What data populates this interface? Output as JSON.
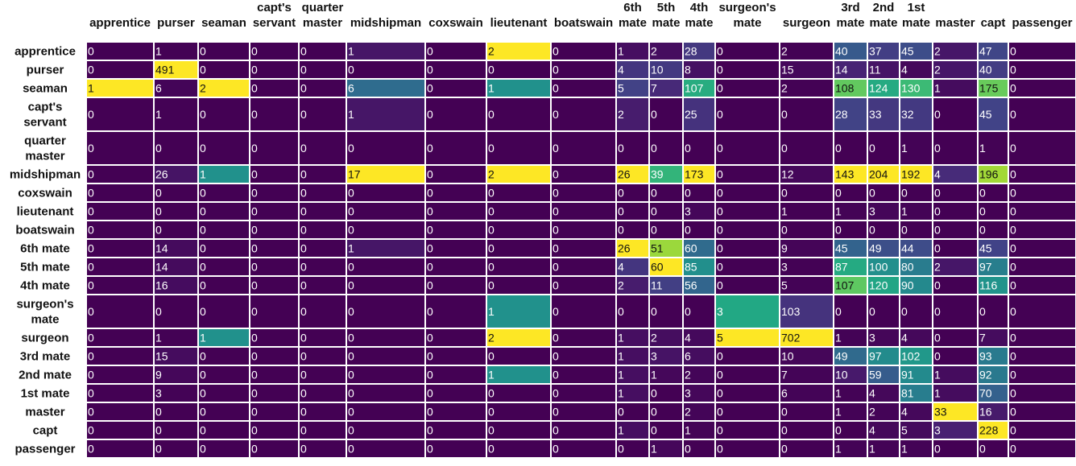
{
  "chart_data": {
    "type": "heatmap",
    "colormap": "viridis",
    "col_labels": [
      [
        "apprentice"
      ],
      [
        "purser"
      ],
      [
        "seaman"
      ],
      [
        "capt's",
        "servant"
      ],
      [
        "quarter",
        "master"
      ],
      [
        "midshipman"
      ],
      [
        "coxswain"
      ],
      [
        "lieutenant"
      ],
      [
        "boatswain"
      ],
      [
        "6th",
        "mate"
      ],
      [
        "5th",
        "mate"
      ],
      [
        "4th",
        "mate"
      ],
      [
        "surgeon's",
        "mate"
      ],
      [
        "surgeon"
      ],
      [
        "3rd",
        "mate"
      ],
      [
        "2nd",
        "mate"
      ],
      [
        "1st",
        "mate"
      ],
      [
        "master"
      ],
      [
        "capt"
      ],
      [
        "passenger"
      ]
    ],
    "row_labels": [
      [
        "apprentice"
      ],
      [
        "purser"
      ],
      [
        "seaman"
      ],
      [
        "capt's",
        "servant"
      ],
      [
        "quarter",
        "master"
      ],
      [
        "midshipman"
      ],
      [
        "coxswain"
      ],
      [
        "lieutenant"
      ],
      [
        "boatswain"
      ],
      [
        "6th mate"
      ],
      [
        "5th mate"
      ],
      [
        "4th mate"
      ],
      [
        "surgeon's",
        "mate"
      ],
      [
        "surgeon"
      ],
      [
        "3rd mate"
      ],
      [
        "2nd mate"
      ],
      [
        "1st mate"
      ],
      [
        "master"
      ],
      [
        "capt"
      ],
      [
        "passenger"
      ]
    ],
    "values": [
      [
        0,
        1,
        0,
        0,
        0,
        1,
        0,
        2,
        0,
        1,
        2,
        28,
        0,
        2,
        40,
        37,
        45,
        2,
        47,
        0
      ],
      [
        0,
        491,
        0,
        0,
        0,
        0,
        0,
        0,
        0,
        4,
        10,
        8,
        0,
        15,
        14,
        11,
        4,
        2,
        40,
        0
      ],
      [
        1,
        6,
        2,
        0,
        0,
        6,
        0,
        1,
        0,
        5,
        7,
        107,
        0,
        2,
        108,
        124,
        130,
        1,
        175,
        0
      ],
      [
        0,
        1,
        0,
        0,
        0,
        1,
        0,
        0,
        0,
        2,
        0,
        25,
        0,
        0,
        28,
        33,
        32,
        0,
        45,
        0
      ],
      [
        0,
        0,
        0,
        0,
        0,
        0,
        0,
        0,
        0,
        0,
        0,
        0,
        0,
        0,
        0,
        0,
        1,
        0,
        1,
        0
      ],
      [
        0,
        26,
        1,
        0,
        0,
        17,
        0,
        2,
        0,
        26,
        39,
        173,
        0,
        12,
        143,
        204,
        192,
        4,
        196,
        0
      ],
      [
        0,
        0,
        0,
        0,
        0,
        0,
        0,
        0,
        0,
        0,
        0,
        0,
        0,
        0,
        0,
        0,
        0,
        0,
        0,
        0
      ],
      [
        0,
        0,
        0,
        0,
        0,
        0,
        0,
        0,
        0,
        0,
        0,
        3,
        0,
        1,
        1,
        3,
        1,
        0,
        0,
        0
      ],
      [
        0,
        0,
        0,
        0,
        0,
        0,
        0,
        0,
        0,
        0,
        0,
        0,
        0,
        0,
        0,
        0,
        0,
        0,
        0,
        0
      ],
      [
        0,
        14,
        0,
        0,
        0,
        1,
        0,
        0,
        0,
        26,
        51,
        60,
        0,
        9,
        45,
        49,
        44,
        0,
        45,
        0
      ],
      [
        0,
        14,
        0,
        0,
        0,
        0,
        0,
        0,
        0,
        4,
        60,
        85,
        0,
        3,
        87,
        100,
        80,
        2,
        97,
        0
      ],
      [
        0,
        16,
        0,
        0,
        0,
        0,
        0,
        0,
        0,
        2,
        11,
        56,
        0,
        5,
        107,
        120,
        90,
        0,
        116,
        0
      ],
      [
        0,
        0,
        0,
        0,
        0,
        0,
        0,
        1,
        0,
        0,
        0,
        0,
        3,
        103,
        0,
        0,
        0,
        0,
        0,
        0
      ],
      [
        0,
        1,
        1,
        0,
        0,
        0,
        0,
        2,
        0,
        1,
        2,
        4,
        5,
        702,
        1,
        3,
        4,
        0,
        7,
        0
      ],
      [
        0,
        15,
        0,
        0,
        0,
        0,
        0,
        0,
        0,
        1,
        3,
        6,
        0,
        10,
        49,
        97,
        102,
        0,
        93,
        0
      ],
      [
        0,
        9,
        0,
        0,
        0,
        0,
        0,
        1,
        0,
        1,
        1,
        2,
        0,
        7,
        10,
        59,
        91,
        1,
        92,
        0
      ],
      [
        0,
        3,
        0,
        0,
        0,
        0,
        0,
        0,
        0,
        1,
        0,
        3,
        0,
        6,
        1,
        4,
        81,
        1,
        70,
        0
      ],
      [
        0,
        0,
        0,
        0,
        0,
        0,
        0,
        0,
        0,
        0,
        0,
        2,
        0,
        0,
        1,
        2,
        4,
        33,
        16,
        0
      ],
      [
        0,
        0,
        0,
        0,
        0,
        0,
        0,
        0,
        0,
        1,
        0,
        1,
        0,
        0,
        0,
        4,
        5,
        3,
        228,
        0
      ],
      [
        0,
        0,
        0,
        0,
        0,
        0,
        0,
        0,
        0,
        0,
        1,
        0,
        0,
        0,
        1,
        1,
        1,
        0,
        0,
        0
      ]
    ],
    "color_scale": "per-column",
    "grid": true,
    "legend": "none"
  }
}
